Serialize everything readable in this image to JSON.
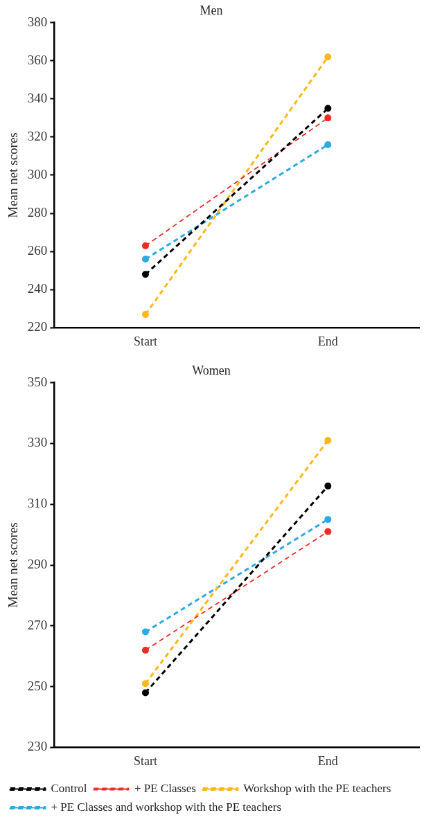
{
  "chart_data": [
    {
      "type": "line",
      "title": "Men",
      "ylabel": "Mean net scores",
      "categories": [
        "Start",
        "End"
      ],
      "ylim": [
        220,
        380
      ],
      "yticks": [
        220,
        240,
        260,
        280,
        300,
        320,
        340,
        360,
        380
      ],
      "grid": false,
      "marker": "circle",
      "line_style": "dashed",
      "legend": false,
      "series": [
        {
          "color": "#000000",
          "values": [
            248,
            335
          ]
        },
        {
          "color": "#ee2a24",
          "values": [
            263,
            330
          ]
        },
        {
          "color": "#fbb817",
          "values": [
            227,
            362
          ]
        },
        {
          "color": "#29abe2",
          "values": [
            256,
            316
          ]
        }
      ]
    },
    {
      "type": "line",
      "title": "Women",
      "ylabel": "Mean net scores",
      "categories": [
        "Start",
        "End"
      ],
      "ylim": [
        230,
        350
      ],
      "yticks": [
        230,
        250,
        270,
        290,
        310,
        330,
        350
      ],
      "grid": false,
      "marker": "circle",
      "line_style": "dashed",
      "legend": "bottom",
      "series": [
        {
          "name": "Control",
          "color": "#000000",
          "values": [
            248,
            316
          ]
        },
        {
          "name": "+ PE Classes",
          "color": "#ee2a24",
          "values": [
            262,
            301
          ]
        },
        {
          "name": "Workshop with the PE teachers",
          "color": "#fbb817",
          "values": [
            251,
            331
          ]
        },
        {
          "name": "+ PE Classes and workshop with the PE teachers",
          "color": "#29abe2",
          "values": [
            268,
            305
          ]
        }
      ]
    }
  ]
}
